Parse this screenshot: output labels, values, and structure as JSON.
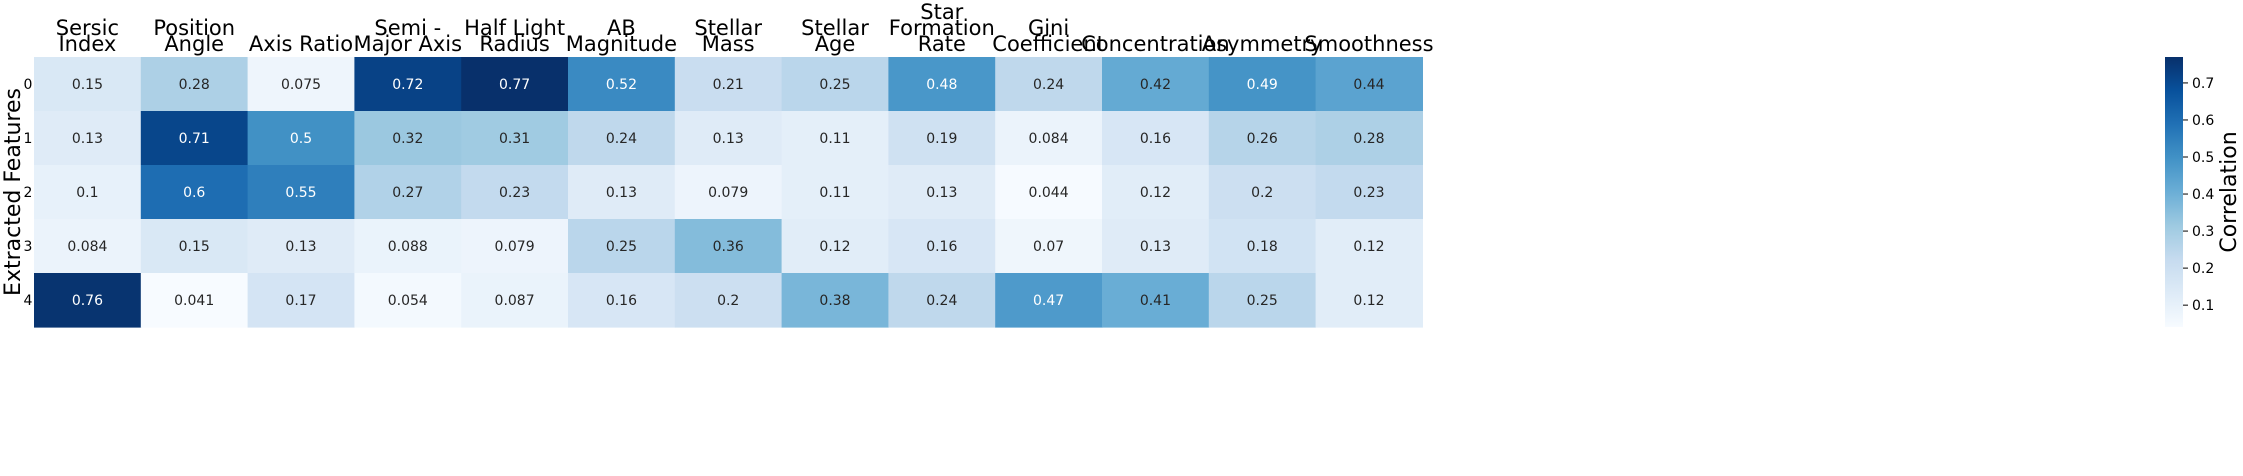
{
  "chart_data": {
    "type": "heatmap",
    "columns": [
      [
        "Sersic",
        "Index"
      ],
      [
        "Position",
        "Angle"
      ],
      [
        "Axis Ratio"
      ],
      [
        "Semi -",
        "Major Axis"
      ],
      [
        "Half Light",
        "Radius"
      ],
      [
        "AB",
        "Magnitude"
      ],
      [
        "Stellar",
        "Mass"
      ],
      [
        "Stellar",
        "Age"
      ],
      [
        "Star",
        "Formation",
        "Rate"
      ],
      [
        "Gini",
        "Coefficient"
      ],
      [
        "Concentration"
      ],
      [
        "Asymmetry"
      ],
      [
        "Smoothness"
      ]
    ],
    "rows": [
      "0",
      "1",
      "2",
      "3",
      "4"
    ],
    "values": [
      [
        0.15,
        0.28,
        0.075,
        0.72,
        0.77,
        0.52,
        0.21,
        0.25,
        0.48,
        0.24,
        0.42,
        0.49,
        0.44
      ],
      [
        0.13,
        0.71,
        0.5,
        0.32,
        0.31,
        0.24,
        0.13,
        0.11,
        0.19,
        0.084,
        0.16,
        0.26,
        0.28
      ],
      [
        0.1,
        0.6,
        0.55,
        0.27,
        0.23,
        0.13,
        0.079,
        0.11,
        0.13,
        0.044,
        0.12,
        0.2,
        0.23
      ],
      [
        0.084,
        0.15,
        0.13,
        0.088,
        0.079,
        0.25,
        0.36,
        0.12,
        0.16,
        0.07,
        0.13,
        0.18,
        0.12
      ],
      [
        0.76,
        0.041,
        0.17,
        0.054,
        0.087,
        0.16,
        0.2,
        0.38,
        0.24,
        0.47,
        0.41,
        0.25,
        0.12
      ]
    ],
    "ylabel": "Extracted Features",
    "colorbar_label": "Correlation",
    "colorbar_ticks": [
      "0.1",
      "0.2",
      "0.3",
      "0.4",
      "0.5",
      "0.6",
      "0.7"
    ],
    "colorbar_range": [
      0.041,
      0.77
    ],
    "colormap": "Blues",
    "grid": false
  }
}
